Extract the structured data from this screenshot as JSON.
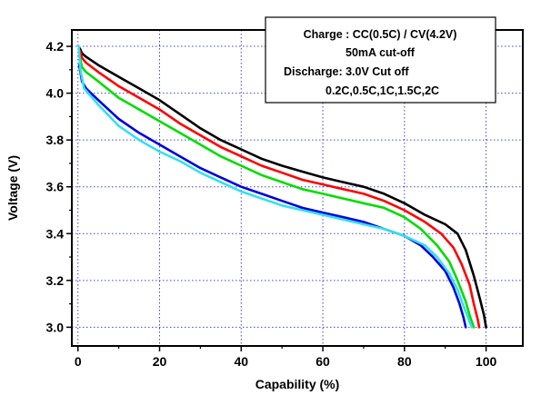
{
  "chart_data": {
    "type": "line",
    "title": "",
    "xlabel": "Capability (%)",
    "ylabel": "Voltage (V)",
    "xlim": [
      -1.5,
      109
    ],
    "ylim": [
      2.92,
      4.27
    ],
    "x_ticks": [
      0,
      20,
      40,
      60,
      80,
      100
    ],
    "y_ticks": [
      3.0,
      3.2,
      3.4,
      3.6,
      3.8,
      4.0,
      4.2
    ],
    "x_tick_labels": [
      "0",
      "20",
      "40",
      "60",
      "80",
      "100"
    ],
    "y_tick_labels": [
      "3.0",
      "3.2",
      "3.4",
      "3.6",
      "3.8",
      "4.0",
      "4.2"
    ],
    "grid": true,
    "legend_text": [
      "Charge : CC(0.5C) / CV(4.2V)",
      "50mA cut-off",
      "Discharge: 3.0V Cut off",
      "0.2C,0.5C,1C,1.5C,2C"
    ],
    "legend_placement": "top-right",
    "series": [
      {
        "color": "#000000",
        "points": [
          [
            0.5,
            4.19
          ],
          [
            1,
            4.17
          ],
          [
            2,
            4.155
          ],
          [
            5,
            4.12
          ],
          [
            10,
            4.07
          ],
          [
            15,
            4.02
          ],
          [
            20,
            3.97
          ],
          [
            25,
            3.91
          ],
          [
            30,
            3.85
          ],
          [
            35,
            3.8
          ],
          [
            40,
            3.76
          ],
          [
            45,
            3.72
          ],
          [
            50,
            3.69
          ],
          [
            55,
            3.665
          ],
          [
            60,
            3.64
          ],
          [
            65,
            3.62
          ],
          [
            70,
            3.6
          ],
          [
            75,
            3.57
          ],
          [
            80,
            3.53
          ],
          [
            85,
            3.48
          ],
          [
            90,
            3.44
          ],
          [
            93,
            3.4
          ],
          [
            95,
            3.33
          ],
          [
            97,
            3.22
          ],
          [
            98.5,
            3.12
          ],
          [
            99.5,
            3.05
          ],
          [
            100,
            3.0
          ]
        ]
      },
      {
        "color": "#ff0000",
        "points": [
          [
            0.5,
            4.18
          ],
          [
            1,
            4.15
          ],
          [
            2,
            4.13
          ],
          [
            5,
            4.09
          ],
          [
            10,
            4.03
          ],
          [
            15,
            3.98
          ],
          [
            20,
            3.93
          ],
          [
            25,
            3.87
          ],
          [
            30,
            3.82
          ],
          [
            35,
            3.77
          ],
          [
            40,
            3.73
          ],
          [
            45,
            3.69
          ],
          [
            50,
            3.66
          ],
          [
            55,
            3.63
          ],
          [
            60,
            3.61
          ],
          [
            65,
            3.59
          ],
          [
            70,
            3.57
          ],
          [
            75,
            3.54
          ],
          [
            80,
            3.5
          ],
          [
            85,
            3.45
          ],
          [
            89,
            3.4
          ],
          [
            92,
            3.34
          ],
          [
            94,
            3.27
          ],
          [
            96,
            3.18
          ],
          [
            97,
            3.1
          ],
          [
            98,
            3.03
          ],
          [
            98.3,
            3.0
          ]
        ]
      },
      {
        "color": "#00dd00",
        "points": [
          [
            0.5,
            4.15
          ],
          [
            1,
            4.11
          ],
          [
            2,
            4.09
          ],
          [
            5,
            4.05
          ],
          [
            10,
            3.98
          ],
          [
            15,
            3.93
          ],
          [
            20,
            3.88
          ],
          [
            25,
            3.83
          ],
          [
            30,
            3.78
          ],
          [
            35,
            3.73
          ],
          [
            40,
            3.69
          ],
          [
            45,
            3.65
          ],
          [
            50,
            3.62
          ],
          [
            55,
            3.59
          ],
          [
            60,
            3.57
          ],
          [
            65,
            3.55
          ],
          [
            70,
            3.53
          ],
          [
            75,
            3.51
          ],
          [
            80,
            3.47
          ],
          [
            84,
            3.42
          ],
          [
            88,
            3.35
          ],
          [
            91,
            3.28
          ],
          [
            93,
            3.2
          ],
          [
            95,
            3.11
          ],
          [
            96,
            3.05
          ],
          [
            97,
            3.0
          ]
        ]
      },
      {
        "color": "#0000dd",
        "points": [
          [
            0.3,
            4.12
          ],
          [
            1,
            4.05
          ],
          [
            2,
            4.02
          ],
          [
            5,
            3.97
          ],
          [
            10,
            3.89
          ],
          [
            15,
            3.83
          ],
          [
            20,
            3.78
          ],
          [
            25,
            3.73
          ],
          [
            30,
            3.68
          ],
          [
            35,
            3.64
          ],
          [
            40,
            3.6
          ],
          [
            45,
            3.57
          ],
          [
            50,
            3.54
          ],
          [
            55,
            3.51
          ],
          [
            60,
            3.49
          ],
          [
            65,
            3.47
          ],
          [
            70,
            3.45
          ],
          [
            75,
            3.42
          ],
          [
            80,
            3.39
          ],
          [
            84,
            3.35
          ],
          [
            87,
            3.3
          ],
          [
            90,
            3.24
          ],
          [
            92,
            3.17
          ],
          [
            93.5,
            3.1
          ],
          [
            94.5,
            3.04
          ],
          [
            95,
            3.0
          ]
        ]
      },
      {
        "color": "#33e0f0",
        "points": [
          [
            0.2,
            4.2
          ],
          [
            0.6,
            4.1
          ],
          [
            1.5,
            4.02
          ],
          [
            5,
            3.95
          ],
          [
            10,
            3.86
          ],
          [
            15,
            3.8
          ],
          [
            20,
            3.75
          ],
          [
            25,
            3.71
          ],
          [
            30,
            3.66
          ],
          [
            35,
            3.62
          ],
          [
            40,
            3.58
          ],
          [
            45,
            3.55
          ],
          [
            50,
            3.52
          ],
          [
            55,
            3.5
          ],
          [
            60,
            3.48
          ],
          [
            65,
            3.46
          ],
          [
            70,
            3.44
          ],
          [
            75,
            3.42
          ],
          [
            80,
            3.39
          ],
          [
            85,
            3.35
          ],
          [
            88,
            3.3
          ],
          [
            91,
            3.23
          ],
          [
            93,
            3.16
          ],
          [
            94.5,
            3.09
          ],
          [
            95.8,
            3.03
          ],
          [
            96.5,
            3.0
          ]
        ]
      }
    ]
  }
}
